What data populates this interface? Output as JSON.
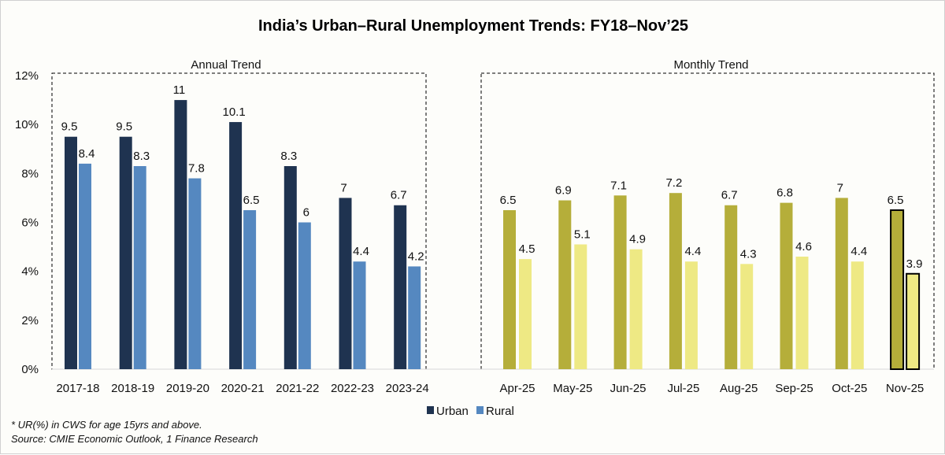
{
  "chart_data": [
    {
      "type": "bar",
      "title": "India’s Urban–Rural Unemployment Trends: FY18–Nov’25",
      "subtitle": "Annual Trend",
      "categories": [
        "2017-18",
        "2018-19",
        "2019-20",
        "2020-21",
        "2021-22",
        "2022-23",
        "2023-24"
      ],
      "series": [
        {
          "name": "Urban",
          "color": "#1f3350",
          "values": [
            9.5,
            9.5,
            11,
            10.1,
            8.3,
            7,
            6.7
          ]
        },
        {
          "name": "Rural",
          "color": "#5588c0",
          "values": [
            8.4,
            8.3,
            7.8,
            6.5,
            6,
            4.4,
            4.2
          ]
        }
      ],
      "ylim": [
        0,
        12
      ],
      "yticks": [
        "0%",
        "2%",
        "4%",
        "6%",
        "8%",
        "10%",
        "12%"
      ],
      "grid": false
    },
    {
      "type": "bar",
      "subtitle": "Monthly Trend",
      "categories": [
        "Apr-25",
        "May-25",
        "Jun-25",
        "Jul-25",
        "Aug-25",
        "Sep-25",
        "Oct-25",
        "Nov-25"
      ],
      "series": [
        {
          "name": "Urban",
          "color": "#b5ae3a",
          "values": [
            6.5,
            6.9,
            7.1,
            7.2,
            6.7,
            6.8,
            7,
            6.5
          ]
        },
        {
          "name": "Rural",
          "color": "#eee984",
          "values": [
            4.5,
            5.1,
            4.9,
            4.4,
            4.3,
            4.6,
            4.4,
            3.9
          ]
        }
      ],
      "highlighted_category": "Nov-25",
      "ylim": [
        0,
        12
      ],
      "grid": false
    }
  ],
  "legend": {
    "position": "bottom",
    "items": [
      {
        "label": "Urban",
        "color": "#1f3350"
      },
      {
        "label": "Rural",
        "color": "#5588c0"
      }
    ]
  },
  "footnotes": [
    "* UR(%) in CWS for age 15yrs and above.",
    "Source: CMIE Economic Outlook, 1 Finance Research"
  ]
}
